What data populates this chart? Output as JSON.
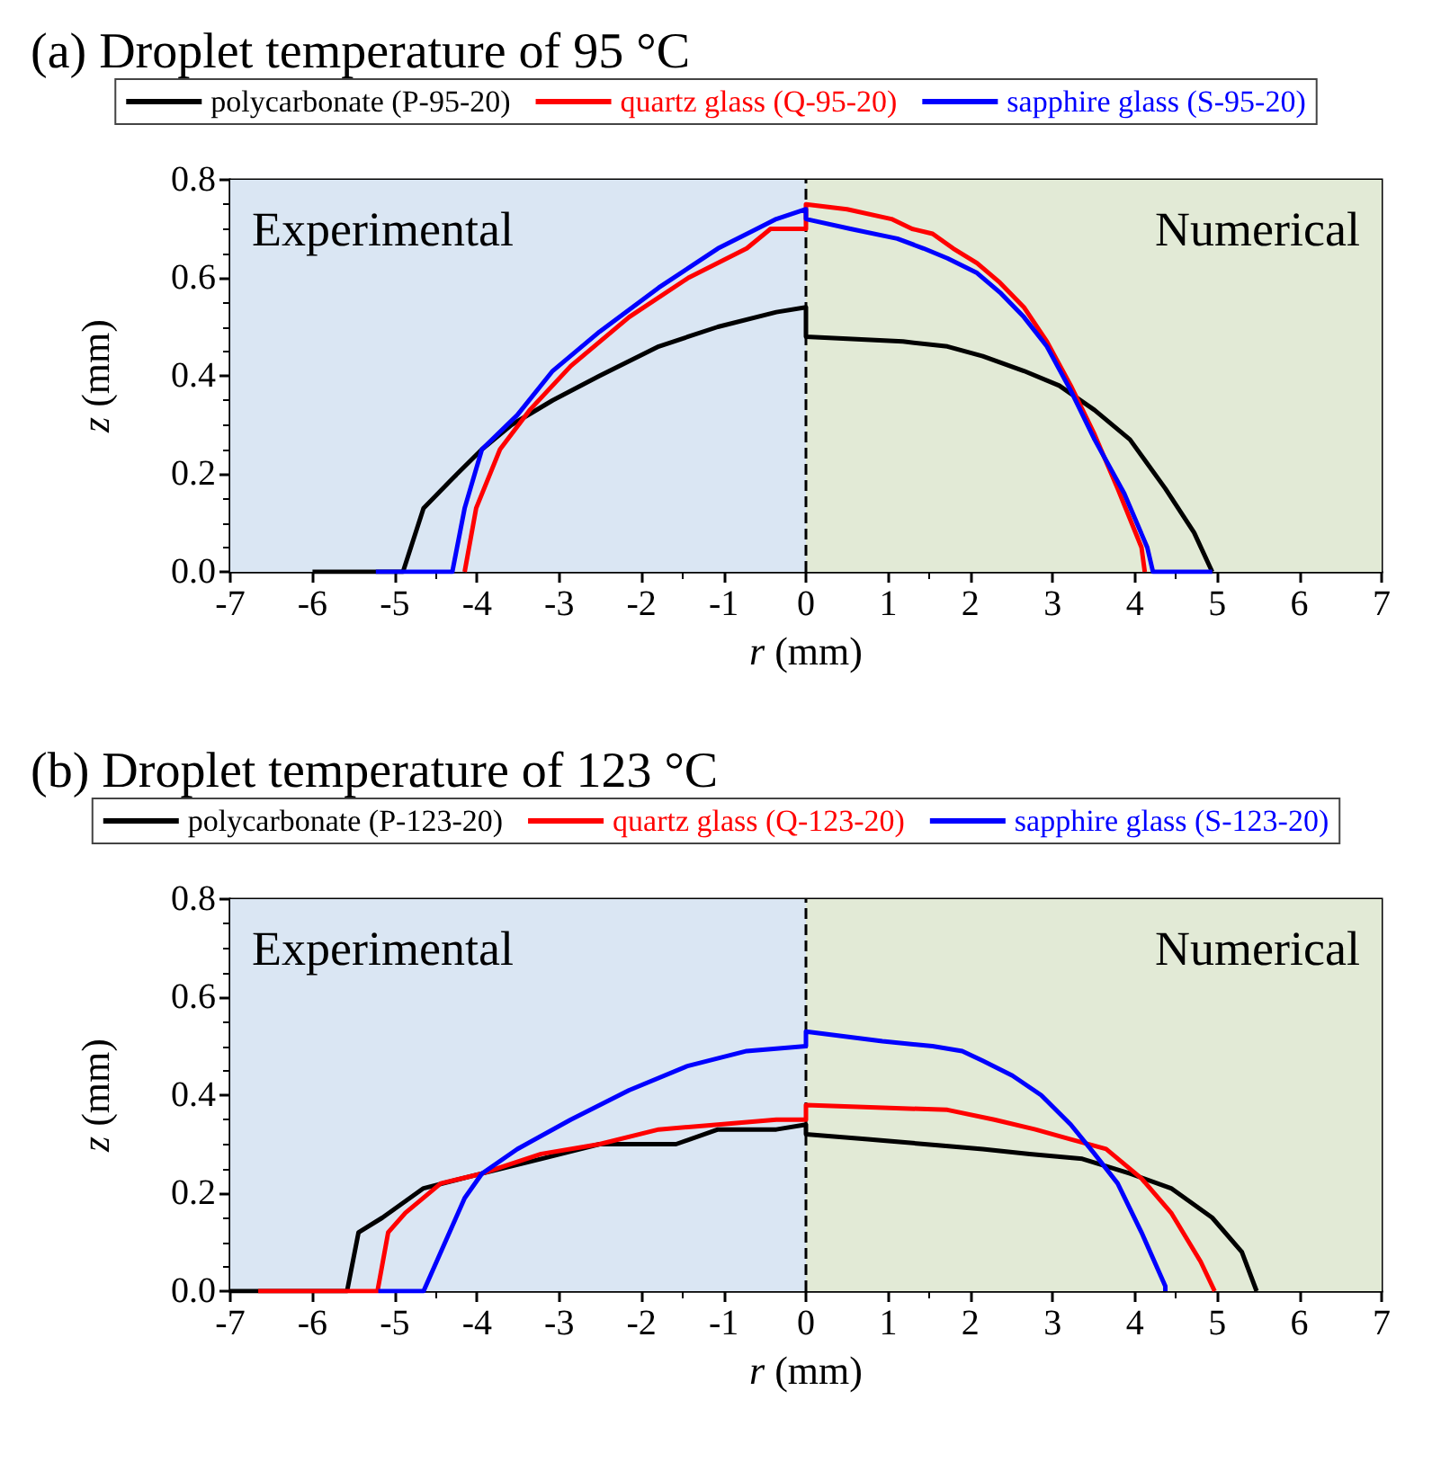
{
  "chart_data": [
    {
      "type": "line",
      "title": "(a) Droplet temperature of 95 °C",
      "xlabel": "r (mm)",
      "ylabel": "z (mm)",
      "xlim": [
        -7,
        7
      ],
      "xticks": [
        -7,
        -6,
        -5,
        -4,
        -3,
        -2,
        -1,
        0,
        1,
        2,
        3,
        4,
        5,
        6,
        7
      ],
      "ylim": [
        0,
        0.8
      ],
      "yticks": [
        {
          "value": 0,
          "label": "0.0"
        },
        {
          "value": 0.2,
          "label": "0.2"
        },
        {
          "value": 0.4,
          "label": "0.4"
        },
        {
          "value": 0.6,
          "label": "0.6"
        },
        {
          "value": 0.8,
          "label": "0.8"
        }
      ],
      "grid": false,
      "legend": "top",
      "line_style": "solid",
      "marker": "none",
      "bands": [
        {
          "axis": "x",
          "from": -7,
          "to": 0,
          "label": "Experimental",
          "color": "#dae6f3"
        },
        {
          "axis": "x",
          "from": 0,
          "to": 7,
          "label": "Numerical",
          "color": "#e2ead6"
        }
      ],
      "ref_lines": [
        {
          "axis": "x",
          "value": 0,
          "line_style": "dashed",
          "color": "#000000"
        }
      ],
      "series": [
        {
          "name": "polycarbonate (P-95-20)",
          "color": "#000000",
          "x": [
            -6,
            -4.9,
            -4.65,
            -4.3,
            -3.94,
            -3.58,
            -3.08,
            -2.51,
            -1.79,
            -1.07,
            -0.36,
            0,
            0,
            1.18,
            1.72,
            2.15,
            2.65,
            3.08,
            3.51,
            3.94,
            4.37,
            4.72,
            4.94
          ],
          "values": [
            0,
            0,
            0.13,
            0.19,
            0.25,
            0.3,
            0.35,
            0.4,
            0.46,
            0.5,
            0.53,
            0.54,
            0.48,
            0.47,
            0.46,
            0.44,
            0.41,
            0.38,
            0.33,
            0.27,
            0.17,
            0.08,
            0
          ]
        },
        {
          "name": "quartz glass (Q-95-20)",
          "color": "#ff0000",
          "x": [
            -4.15,
            -4.01,
            -3.72,
            -3.36,
            -2.86,
            -2.15,
            -1.43,
            -0.72,
            -0.43,
            0,
            0,
            0.5,
            1.04,
            1.29,
            1.54,
            1.79,
            2.08,
            2.36,
            2.65,
            2.93,
            3.22,
            3.51,
            3.79,
            4.08,
            4.12
          ],
          "values": [
            0,
            0.13,
            0.25,
            0.33,
            0.42,
            0.52,
            0.6,
            0.66,
            0.7,
            0.7,
            0.75,
            0.74,
            0.72,
            0.7,
            0.69,
            0.66,
            0.63,
            0.59,
            0.54,
            0.47,
            0.38,
            0.28,
            0.17,
            0.05,
            0
          ]
        },
        {
          "name": "sapphire glass (S-95-20)",
          "color": "#0000ff",
          "x": [
            -5.23,
            -4.3,
            -4.15,
            -3.94,
            -3.51,
            -3.08,
            -2.51,
            -1.79,
            -1.07,
            -0.36,
            0,
            0,
            0.54,
            1.11,
            1.43,
            1.72,
            2.08,
            2.36,
            2.65,
            2.93,
            3.22,
            3.51,
            3.87,
            4.15,
            4.22,
            4.94
          ],
          "values": [
            0,
            0,
            0.13,
            0.25,
            0.32,
            0.41,
            0.49,
            0.58,
            0.66,
            0.72,
            0.74,
            0.72,
            0.7,
            0.68,
            0.66,
            0.64,
            0.61,
            0.57,
            0.52,
            0.46,
            0.37,
            0.27,
            0.16,
            0.05,
            0,
            0
          ]
        }
      ]
    },
    {
      "type": "line",
      "title": "(b) Droplet temperature of 123 °C",
      "xlabel": "r (mm)",
      "ylabel": "z (mm)",
      "xlim": [
        -7,
        7
      ],
      "xticks": [
        -7,
        -6,
        -5,
        -4,
        -3,
        -2,
        -1,
        0,
        1,
        2,
        3,
        4,
        5,
        6,
        7
      ],
      "ylim": [
        0,
        0.8
      ],
      "yticks": [
        {
          "value": 0,
          "label": "0.0"
        },
        {
          "value": 0.2,
          "label": "0.2"
        },
        {
          "value": 0.4,
          "label": "0.4"
        },
        {
          "value": 0.6,
          "label": "0.6"
        },
        {
          "value": 0.8,
          "label": "0.8"
        }
      ],
      "grid": false,
      "legend": "top",
      "line_style": "solid",
      "marker": "none",
      "bands": [
        {
          "axis": "x",
          "from": -7,
          "to": 0,
          "label": "Experimental",
          "color": "#dae6f3"
        },
        {
          "axis": "x",
          "from": 0,
          "to": 7,
          "label": "Numerical",
          "color": "#e2ead6"
        }
      ],
      "ref_lines": [
        {
          "axis": "x",
          "value": 0,
          "line_style": "dashed",
          "color": "#000000"
        }
      ],
      "series": [
        {
          "name": "polycarbonate (P-123-20)",
          "color": "#000000",
          "x": [
            -7,
            -5.58,
            -5.44,
            -5.15,
            -4.65,
            -3.94,
            -3.22,
            -2.51,
            -1.58,
            -1.07,
            -0.36,
            0,
            0,
            0.75,
            2.15,
            2.72,
            3.36,
            3.94,
            4.44,
            4.94,
            5.3,
            5.48
          ],
          "values": [
            0,
            0,
            0.12,
            0.15,
            0.21,
            0.24,
            0.27,
            0.3,
            0.3,
            0.33,
            0.33,
            0.34,
            0.32,
            0.31,
            0.29,
            0.28,
            0.27,
            0.24,
            0.21,
            0.15,
            0.08,
            0
          ]
        },
        {
          "name": "quartz glass (Q-123-20)",
          "color": "#ff0000",
          "x": [
            -6.66,
            -5.21,
            -5.08,
            -4.87,
            -4.44,
            -3.94,
            -3.22,
            -2.51,
            -1.79,
            -1.07,
            -0.36,
            0,
            0,
            1.72,
            2.29,
            2.79,
            3.22,
            3.65,
            4.08,
            4.44,
            4.8,
            4.97
          ],
          "values": [
            0,
            0,
            0.12,
            0.16,
            0.22,
            0.24,
            0.28,
            0.3,
            0.33,
            0.34,
            0.35,
            0.35,
            0.38,
            0.37,
            0.35,
            0.33,
            0.31,
            0.29,
            0.23,
            0.16,
            0.06,
            0
          ]
        },
        {
          "name": "sapphire glass (S-123-20)",
          "color": "#0000ff",
          "x": [
            -5.2,
            -4.65,
            -4.44,
            -4.15,
            -3.94,
            -3.51,
            -2.86,
            -2.15,
            -1.43,
            -0.72,
            0,
            0,
            0.93,
            1.54,
            1.9,
            2.15,
            2.51,
            2.86,
            3.22,
            3.51,
            3.79,
            4.08,
            4.37,
            4.37
          ],
          "values": [
            0,
            0,
            0.08,
            0.19,
            0.24,
            0.29,
            0.35,
            0.41,
            0.46,
            0.49,
            0.5,
            0.53,
            0.51,
            0.5,
            0.49,
            0.47,
            0.44,
            0.4,
            0.34,
            0.28,
            0.22,
            0.12,
            0.01,
            0
          ]
        }
      ]
    }
  ]
}
